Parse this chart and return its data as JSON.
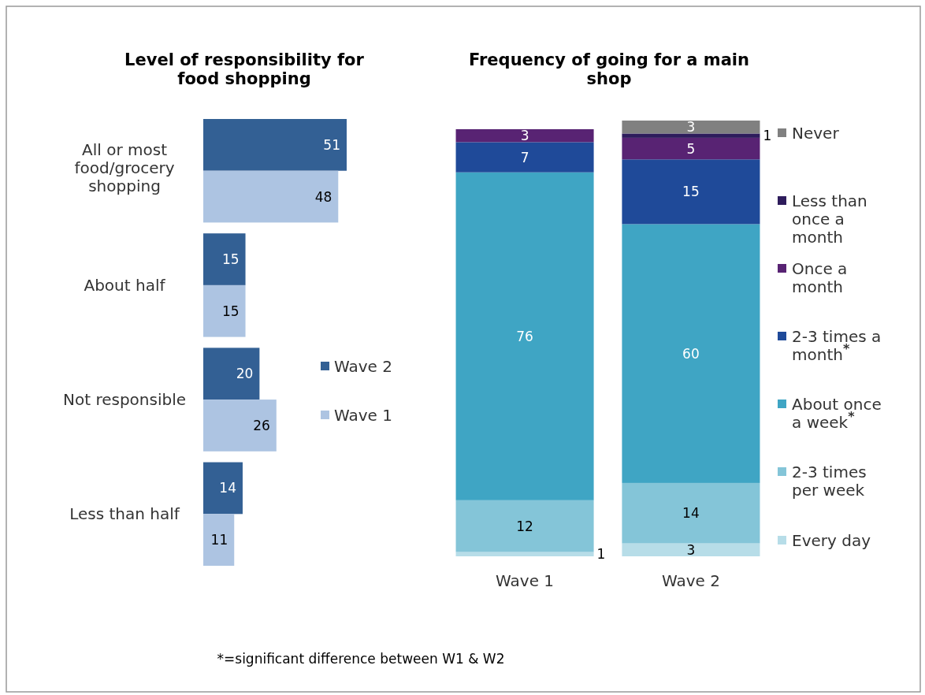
{
  "chart_data": [
    {
      "type": "bar",
      "orientation": "horizontal",
      "title": "Level of responsibility for food shopping",
      "categories": [
        "All or most food/grocery shopping",
        "About half",
        "Not responsible",
        "Less than half"
      ],
      "series": [
        {
          "name": "Wave 2",
          "color": "#336094",
          "values": [
            51,
            15,
            20,
            14
          ]
        },
        {
          "name": "Wave 1",
          "color": "#adc4e2",
          "values": [
            48,
            15,
            26,
            11
          ]
        }
      ],
      "data_labels": true,
      "legend": "right",
      "tick_labels": "y"
    },
    {
      "type": "bar",
      "stacked": true,
      "title": "Frequency of going for a main shop",
      "categories": [
        "Wave 1",
        "Wave 2"
      ],
      "series": [
        {
          "name": "Every day",
          "color": "#b7dde8",
          "values": [
            1,
            3
          ]
        },
        {
          "name": "2-3 times per week",
          "color": "#84c5d8",
          "values": [
            12,
            14
          ]
        },
        {
          "name": "About once a week$^{*}$",
          "color": "#3fa5c4",
          "values": [
            76,
            60
          ]
        },
        {
          "name": "2-3 times a month$^{*}$",
          "color": "#1f4a99",
          "values": [
            7,
            15
          ]
        },
        {
          "name": "Once a month",
          "color": "#582373",
          "values": [
            3,
            5
          ]
        },
        {
          "name": "Less than once a month",
          "color": "#2e1c5c",
          "values": [
            null,
            1
          ]
        },
        {
          "name": "Never",
          "color": "#808080",
          "values": [
            null,
            3
          ]
        }
      ],
      "data_labels": true,
      "legend": "right",
      "tick_labels": "x",
      "annotations": [
        "*=significant difference between W1 & W2"
      ]
    }
  ]
}
